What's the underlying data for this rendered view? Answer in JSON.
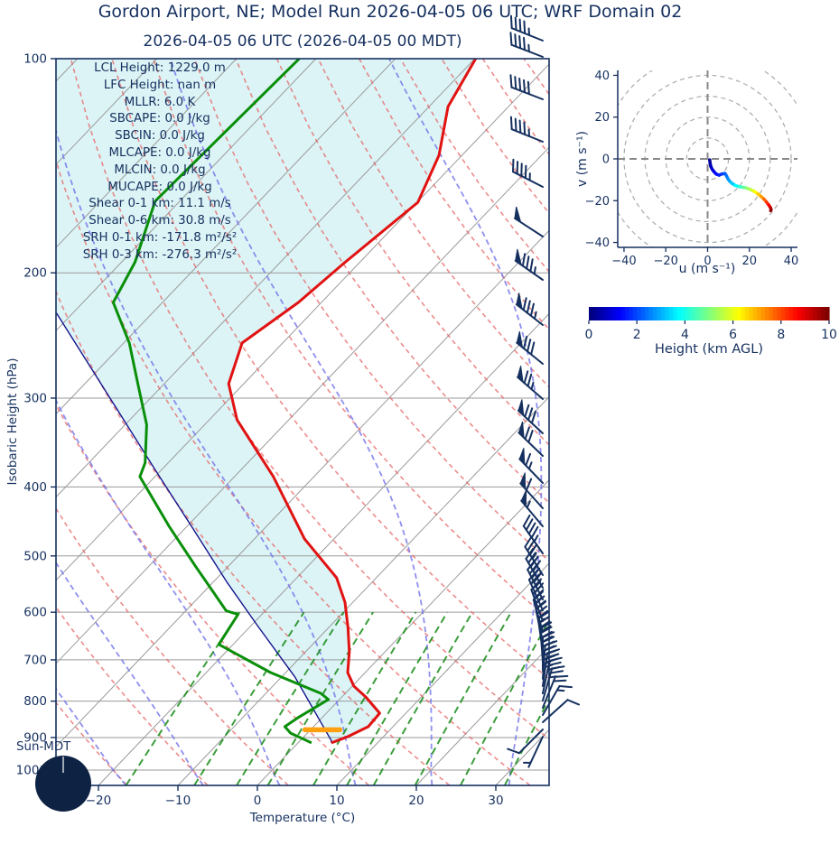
{
  "header": {
    "title": "Gordon Airport, NE; Model Run 2026-04-05 06 UTC; WRF Domain 02",
    "subtitle": "2026-04-05 06 UTC  (2026-04-05 00 MDT)"
  },
  "skewt": {
    "xlabel": "Temperature (°C)",
    "ylabel": "Isobaric Height (hPa)",
    "x_ticks": [
      -20,
      -10,
      0,
      10,
      20,
      30
    ],
    "y_ticks": [
      100,
      200,
      300,
      400,
      500,
      600,
      700,
      800,
      900,
      1000
    ],
    "sun_label": "Sun-MDT",
    "stats": [
      "LCL Height: 1229.0 m",
      "LFC Height: nan m",
      "MLLR: 6.0 K",
      "SBCAPE: 0.0 J/kg",
      "SBCIN: 0.0 J/kg",
      "MLCAPE: 0.0 J/kg",
      "MLCIN: 0.0 J/kg",
      "MUCAPE: 0.0 J/kg",
      "Shear 0-1 km: 11.1 m/s",
      "Shear 0-6 km: 30.8 m/s",
      "SRH 0-1 km: -171.8 m²/s²",
      "SRH 0-3 km: -276.3 m²/s²"
    ]
  },
  "hodograph": {
    "xlabel": "u (m s⁻¹)",
    "ylabel": "v (m s⁻¹)",
    "ticks": [
      -40,
      -20,
      0,
      20,
      40
    ]
  },
  "colorbar": {
    "label": "Height (km AGL)",
    "ticks": [
      0,
      2,
      4,
      6,
      8,
      10
    ],
    "min": 0,
    "max": 10
  },
  "colors": {
    "text": "#15305F",
    "temperature": "#E11212",
    "dewpoint": "#0A8F0A",
    "parcel": "#14148C",
    "cin_fill": "#DCF4F6",
    "lcl_marker": "#FFA010",
    "isotherm": "#9A9A9A",
    "dry_adiabat": "rgba(230,90,90,0.7)",
    "moist_adiabat": "rgba(115,115,235,0.8)",
    "mixing_line": "rgba(25,140,25,0.85)",
    "barb": "#15305F"
  },
  "chart_data": [
    {
      "type": "line",
      "name": "skewt-sounding",
      "title": "Skew-T log-P sounding",
      "xlabel": "Temperature (°C)",
      "ylabel": "Isobaric Height (hPa)",
      "xlim": [
        -20,
        30
      ],
      "pressure_lim_hPa": [
        100,
        1050
      ],
      "temperature_profile_p_T": [
        [
          100,
          -59.9
        ],
        [
          116.8,
          -57.6
        ],
        [
          136.7,
          -52.9
        ],
        [
          159.2,
          -49.9
        ],
        [
          194.1,
          -51.9
        ],
        [
          220.1,
          -52.9
        ],
        [
          251,
          -55.1
        ],
        [
          286.4,
          -51.9
        ],
        [
          321.9,
          -46.5
        ],
        [
          386.9,
          -35.1
        ],
        [
          473.2,
          -23.7
        ],
        [
          536.6,
          -15.0
        ],
        [
          580.8,
          -11.0
        ],
        [
          630.2,
          -7.6
        ],
        [
          681.9,
          -4.5
        ],
        [
          729.3,
          -2.2
        ],
        [
          762.1,
          0.2
        ],
        [
          789.3,
          3.0
        ],
        [
          831.8,
          6.7
        ],
        [
          869,
          6.9
        ],
        [
          897.4,
          5.5
        ],
        [
          915.8,
          4.2
        ]
      ],
      "dewpoint_profile_p_T": [
        [
          100,
          -82.1
        ],
        [
          158.6,
          -83.1
        ],
        [
          193.2,
          -78.3
        ],
        [
          220.1,
          -76.2
        ],
        [
          251,
          -69.3
        ],
        [
          287.8,
          -63.1
        ],
        [
          326.9,
          -57.3
        ],
        [
          369.9,
          -52.9
        ],
        [
          386.9,
          -51.9
        ],
        [
          454,
          -42.3
        ],
        [
          517.2,
          -34.1
        ],
        [
          597.3,
          -24.9
        ],
        [
          604,
          -23.0
        ],
        [
          665.9,
          -21.8
        ],
        [
          729.3,
          -11.9
        ],
        [
          780,
          -3.1
        ],
        [
          795.8,
          -1.4
        ],
        [
          842.6,
          -3.0
        ],
        [
          869,
          -3.6
        ],
        [
          887.4,
          -2.1
        ],
        [
          908.8,
          0.8
        ],
        [
          915.8,
          1.7
        ]
      ],
      "parcel_profile_p_T": [
        [
          915.8,
          4.2
        ],
        [
          908.8,
          3.9
        ],
        [
          739.9,
          -8.3
        ],
        [
          626.5,
          -19.2
        ],
        [
          544.9,
          -28.2
        ],
        [
          460.5,
          -38.6
        ],
        [
          378.4,
          -50.8
        ],
        [
          227.7,
          -82.1
        ]
      ],
      "lcl_marker": {
        "pressure_hPa": 877.8,
        "temp_C": 1.5
      },
      "shaded_region": "CIN (between parcel profile and temperature profile)",
      "wind_barbs": [
        {
          "y": 45,
          "pennants": 0,
          "fulls": 4,
          "halfs": 1,
          "angle": 292
        },
        {
          "y": 63,
          "pennants": 0,
          "fulls": 4,
          "halfs": 1,
          "angle": 291
        },
        {
          "y": 110,
          "pennants": 0,
          "fulls": 5,
          "halfs": 0,
          "angle": 291
        },
        {
          "y": 157,
          "pennants": 0,
          "fulls": 4,
          "halfs": 1,
          "angle": 292
        },
        {
          "y": 207,
          "pennants": 0,
          "fulls": 4,
          "halfs": 1,
          "angle": 297
        },
        {
          "y": 262,
          "pennants": 1,
          "fulls": 0,
          "halfs": 0,
          "angle": 303
        },
        {
          "y": 310,
          "pennants": 1,
          "fulls": 3,
          "halfs": 1,
          "angle": 305
        },
        {
          "y": 360,
          "pennants": 1,
          "fulls": 3,
          "halfs": 1,
          "angle": 308
        },
        {
          "y": 403,
          "pennants": 1,
          "fulls": 3,
          "halfs": 0,
          "angle": 309
        },
        {
          "y": 442,
          "pennants": 1,
          "fulls": 2,
          "halfs": 1,
          "angle": 311
        },
        {
          "y": 480,
          "pennants": 1,
          "fulls": 3,
          "halfs": 0,
          "angle": 313
        },
        {
          "y": 505,
          "pennants": 1,
          "fulls": 2,
          "halfs": 0,
          "angle": 314
        },
        {
          "y": 535,
          "pennants": 1,
          "fulls": 1,
          "halfs": 1,
          "angle": 316
        },
        {
          "y": 563,
          "pennants": 1,
          "fulls": 1,
          "halfs": 0,
          "angle": 318
        },
        {
          "y": 583,
          "pennants": 1,
          "fulls": 0,
          "halfs": 1,
          "angle": 320
        },
        {
          "y": 613,
          "pennants": 0,
          "fulls": 4,
          "halfs": 1,
          "angle": 325
        },
        {
          "y": 637,
          "pennants": 0,
          "fulls": 3,
          "halfs": 1,
          "angle": 328
        },
        {
          "y": 651,
          "pennants": 0,
          "fulls": 4,
          "halfs": 0,
          "angle": 330
        },
        {
          "y": 664,
          "pennants": 0,
          "fulls": 4,
          "halfs": 1,
          "angle": 333
        },
        {
          "y": 676,
          "pennants": 0,
          "fulls": 4,
          "halfs": 0,
          "angle": 336
        },
        {
          "y": 688,
          "pennants": 0,
          "fulls": 3,
          "halfs": 1,
          "angle": 340
        },
        {
          "y": 700,
          "pennants": 0,
          "fulls": 3,
          "halfs": 0,
          "angle": 344
        },
        {
          "y": 711,
          "pennants": 0,
          "fulls": 3,
          "halfs": 1,
          "angle": 348
        },
        {
          "y": 722,
          "pennants": 0,
          "fulls": 4,
          "halfs": 0,
          "angle": 352
        },
        {
          "y": 733,
          "pennants": 0,
          "fulls": 4,
          "halfs": 1,
          "angle": 356
        },
        {
          "y": 743,
          "pennants": 0,
          "fulls": 4,
          "halfs": 0,
          "angle": 0
        },
        {
          "y": 752,
          "pennants": 0,
          "fulls": 4,
          "halfs": 1,
          "angle": 4
        },
        {
          "y": 760,
          "pennants": 0,
          "fulls": 3,
          "halfs": 1,
          "angle": 8
        },
        {
          "y": 768,
          "pennants": 0,
          "fulls": 3,
          "halfs": 0,
          "angle": 12
        },
        {
          "y": 776,
          "pennants": 0,
          "fulls": 2,
          "halfs": 1,
          "angle": 16
        },
        {
          "y": 784,
          "pennants": 0,
          "fulls": 2,
          "halfs": 0,
          "angle": 22
        },
        {
          "y": 792,
          "pennants": 0,
          "fulls": 1,
          "halfs": 1,
          "angle": 30
        },
        {
          "y": 800,
          "pennants": 0,
          "fulls": 1,
          "halfs": 0,
          "angle": 48
        },
        {
          "y": 808,
          "pennants": 0,
          "fulls": 1,
          "halfs": 0,
          "angle": 225
        },
        {
          "y": 816,
          "pennants": 0,
          "fulls": 0,
          "halfs": 1,
          "angle": 205
        }
      ]
    },
    {
      "type": "line",
      "name": "hodograph",
      "xlabel": "u (m s⁻¹)",
      "ylabel": "v (m s⁻¹)",
      "xlim": [
        -43,
        43
      ],
      "ylim": [
        -43,
        43
      ],
      "ring_interval": 10,
      "color_by": "Height (km AGL)",
      "points": [
        {
          "h": 0.0,
          "u": 1.0,
          "v": -0.5
        },
        {
          "h": 0.25,
          "u": 1.2,
          "v": -2.0
        },
        {
          "h": 0.5,
          "u": 1.5,
          "v": -3.5
        },
        {
          "h": 0.75,
          "u": 2.2,
          "v": -5.0
        },
        {
          "h": 1.0,
          "u": 3.2,
          "v": -6.3
        },
        {
          "h": 1.25,
          "u": 4.2,
          "v": -7.3
        },
        {
          "h": 1.5,
          "u": 5.5,
          "v": -7.8
        },
        {
          "h": 1.75,
          "u": 7.0,
          "v": -7.2
        },
        {
          "h": 2.0,
          "u": 8.3,
          "v": -7.0
        },
        {
          "h": 2.25,
          "u": 9.0,
          "v": -8.0
        },
        {
          "h": 2.5,
          "u": 9.6,
          "v": -9.3
        },
        {
          "h": 2.75,
          "u": 10.4,
          "v": -10.5
        },
        {
          "h": 3.0,
          "u": 11.4,
          "v": -11.5
        },
        {
          "h": 3.5,
          "u": 13.2,
          "v": -12.7
        },
        {
          "h": 4.0,
          "u": 15.2,
          "v": -13.3
        },
        {
          "h": 4.5,
          "u": 17.0,
          "v": -13.6
        },
        {
          "h": 5.0,
          "u": 18.8,
          "v": -14.0
        },
        {
          "h": 5.5,
          "u": 20.6,
          "v": -14.7
        },
        {
          "h": 6.0,
          "u": 22.4,
          "v": -15.6
        },
        {
          "h": 6.5,
          "u": 24.0,
          "v": -16.7
        },
        {
          "h": 7.0,
          "u": 25.6,
          "v": -18.0
        },
        {
          "h": 7.5,
          "u": 27.0,
          "v": -19.3
        },
        {
          "h": 8.0,
          "u": 28.2,
          "v": -20.7
        },
        {
          "h": 8.5,
          "u": 29.2,
          "v": -22.0
        },
        {
          "h": 9.0,
          "u": 30.0,
          "v": -23.2
        },
        {
          "h": 9.5,
          "u": 30.4,
          "v": -24.2
        },
        {
          "h": 10.0,
          "u": 30.2,
          "v": -24.8
        }
      ]
    }
  ]
}
